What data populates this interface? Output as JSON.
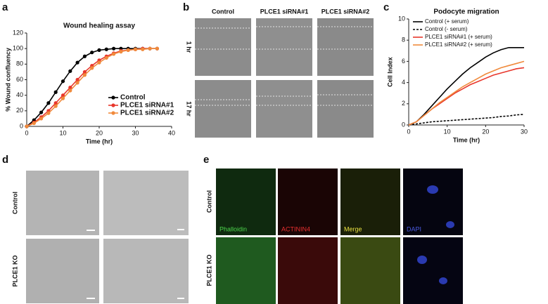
{
  "panel_letters": [
    "a",
    "b",
    "c",
    "d",
    "e"
  ],
  "chart_data": [
    {
      "type": "line",
      "title": "Wound healing assay",
      "x_label": "Time (hr)",
      "y_label": "% Wound confluency",
      "x": [
        0,
        2,
        4,
        6,
        8,
        10,
        12,
        14,
        16,
        18,
        20,
        22,
        24,
        26,
        28,
        30,
        32,
        34,
        36
      ],
      "xlim": [
        0,
        40
      ],
      "xticks": [
        0,
        10,
        20,
        30,
        40
      ],
      "ylim": [
        0,
        120
      ],
      "yticks": [
        0,
        20,
        40,
        60,
        80,
        100,
        120
      ],
      "markers": true,
      "legend": "lower right",
      "series": [
        {
          "name": "Control",
          "color": "#000000",
          "dash": false,
          "values": [
            0,
            8,
            18,
            30,
            44,
            58,
            71,
            82,
            90,
            95,
            98,
            99,
            100,
            100,
            100,
            100,
            100,
            100,
            100
          ]
        },
        {
          "name": "PLCE1 siRNA#1",
          "color": "#e8372c",
          "dash": false,
          "values": [
            0,
            5,
            12,
            20,
            30,
            40,
            50,
            60,
            70,
            78,
            85,
            90,
            94,
            97,
            98,
            99,
            100,
            100,
            100
          ]
        },
        {
          "name": "PLCE1 siRNA#2",
          "color": "#f08a3c",
          "dash": false,
          "values": [
            0,
            4,
            10,
            17,
            26,
            36,
            46,
            56,
            66,
            75,
            82,
            88,
            93,
            96,
            98,
            99,
            99,
            100,
            100
          ]
        }
      ]
    },
    {
      "type": "line",
      "title": "Podocyte migration",
      "x_label": "Time (hr)",
      "y_label": "Cell Index",
      "x": [
        0,
        2,
        4,
        6,
        8,
        10,
        12,
        14,
        16,
        18,
        20,
        22,
        24,
        26,
        28,
        30
      ],
      "xlim": [
        0,
        30
      ],
      "xticks": [
        0,
        10,
        20,
        30
      ],
      "ylim": [
        0,
        10
      ],
      "yticks": [
        0,
        2,
        4,
        6,
        8,
        10
      ],
      "markers": false,
      "legend": "upper left",
      "series": [
        {
          "name": "Control (+ serum)",
          "color": "#000000",
          "dash": false,
          "values": [
            0,
            0.3,
            1.0,
            1.8,
            2.6,
            3.4,
            4.1,
            4.8,
            5.4,
            5.9,
            6.4,
            6.8,
            7.1,
            7.3,
            7.3,
            7.3
          ]
        },
        {
          "name": "Control (- serum)",
          "color": "#000000",
          "dash": true,
          "values": [
            0,
            0.1,
            0.2,
            0.3,
            0.35,
            0.4,
            0.45,
            0.5,
            0.55,
            0.6,
            0.65,
            0.7,
            0.8,
            0.85,
            0.95,
            1.0
          ]
        },
        {
          "name": "PLCE1 siRNA#1 (+ serum)",
          "color": "#e8372c",
          "dash": false,
          "values": [
            0,
            0.3,
            0.9,
            1.5,
            2.0,
            2.5,
            3.0,
            3.4,
            3.8,
            4.1,
            4.4,
            4.7,
            4.9,
            5.1,
            5.3,
            5.4
          ]
        },
        {
          "name": "PLCE1 siRNA#2 (+ serum)",
          "color": "#f08a3c",
          "dash": false,
          "values": [
            0,
            0.3,
            0.9,
            1.5,
            2.1,
            2.6,
            3.1,
            3.6,
            4.0,
            4.4,
            4.8,
            5.1,
            5.4,
            5.6,
            5.8,
            6.0
          ]
        }
      ]
    }
  ],
  "panel_b": {
    "columns": [
      "Control",
      "PLCE1 siRNA#1",
      "PLCE1 siRNA#2"
    ],
    "rows": [
      "1 hr",
      "17 hr"
    ]
  },
  "panel_d": {
    "rows": [
      "Control",
      "PLCE1 KO"
    ]
  },
  "panel_e": {
    "rows": [
      "Control",
      "PLCE1 KO"
    ],
    "channels": [
      "Phalloidin",
      "ACTININ4",
      "Merge",
      "DAPI"
    ]
  }
}
